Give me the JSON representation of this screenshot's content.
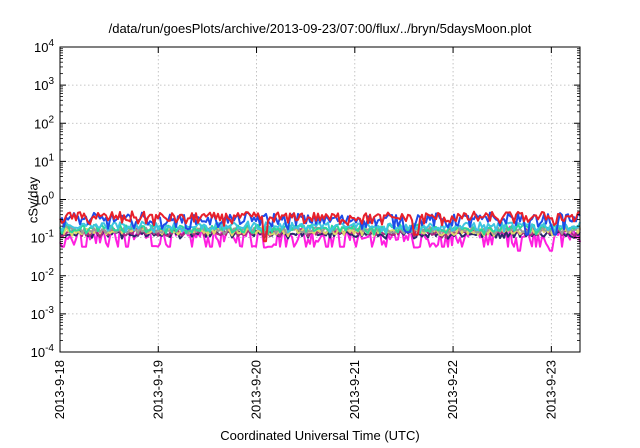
{
  "chart_data": {
    "type": "line",
    "title": "/data/run/goesPlots/archive/2013-09-23/07:00/flux/../bryn/5daysMoon.plot",
    "xlabel": "Coordinated Universal Time (UTC)",
    "ylabel": "cSv/day",
    "x_range": [
      "2013-09-18T00:00",
      "2013-09-23T07:00"
    ],
    "x_ticks": [
      "2013-9-18",
      "2013-9-19",
      "2013-9-20",
      "2013-9-21",
      "2013-9-22",
      "2013-9-23"
    ],
    "y_scale": "log",
    "ylim": [
      0.0001,
      10000
    ],
    "y_ticks": [
      {
        "value": 0.0001,
        "label": "10^-4"
      },
      {
        "value": 0.001,
        "label": "10^-3"
      },
      {
        "value": 0.01,
        "label": "10^-2"
      },
      {
        "value": 0.1,
        "label": "10^-1"
      },
      {
        "value": 1,
        "label": "10^0"
      },
      {
        "value": 10,
        "label": "10^1"
      },
      {
        "value": 100,
        "label": "10^2"
      },
      {
        "value": 1000,
        "label": "10^3"
      },
      {
        "value": 10000,
        "label": "10^4"
      }
    ],
    "grid": true,
    "series": [
      {
        "color": "#e8202a",
        "base": 0.34,
        "noise": 0.11,
        "dips": [
          [
            "2013-09-20T02:00",
            0.08
          ],
          [
            "2013-09-21T15:00",
            0.12
          ]
        ]
      },
      {
        "color": "#1d4ce8",
        "base": 0.3,
        "noise": 0.12,
        "dips": [
          [
            "2013-09-21T13:00",
            0.14
          ],
          [
            "2013-09-22T18:00",
            0.12
          ],
          [
            "2013-09-23T01:00",
            0.12
          ]
        ]
      },
      {
        "color": "#3fc4e0",
        "base": 0.2,
        "noise": 0.05,
        "dips": []
      },
      {
        "color": "#2ad89a",
        "base": 0.175,
        "noise": 0.04,
        "dips": []
      },
      {
        "color": "#9a9a9a",
        "base": 0.16,
        "noise": 0.03,
        "dips": []
      },
      {
        "color": "#e0d86a",
        "base": 0.15,
        "noise": 0.03,
        "dips": []
      },
      {
        "color": "#b02a80",
        "base": 0.14,
        "noise": 0.03,
        "dips": []
      },
      {
        "color": "#2a2a6a",
        "base": 0.125,
        "noise": 0.025,
        "dips": []
      },
      {
        "color": "#ff1fe0",
        "base": 0.105,
        "noise": 0.07,
        "dips": [
          [
            "2013-09-18T23:00",
            0.06
          ],
          [
            "2013-09-20T02:00",
            0.055
          ],
          [
            "2013-09-21T15:00",
            0.055
          ],
          [
            "2013-09-21T19:00",
            0.07
          ],
          [
            "2013-09-22T16:00",
            0.045
          ],
          [
            "2013-09-23T00:00",
            0.045
          ]
        ]
      }
    ]
  }
}
